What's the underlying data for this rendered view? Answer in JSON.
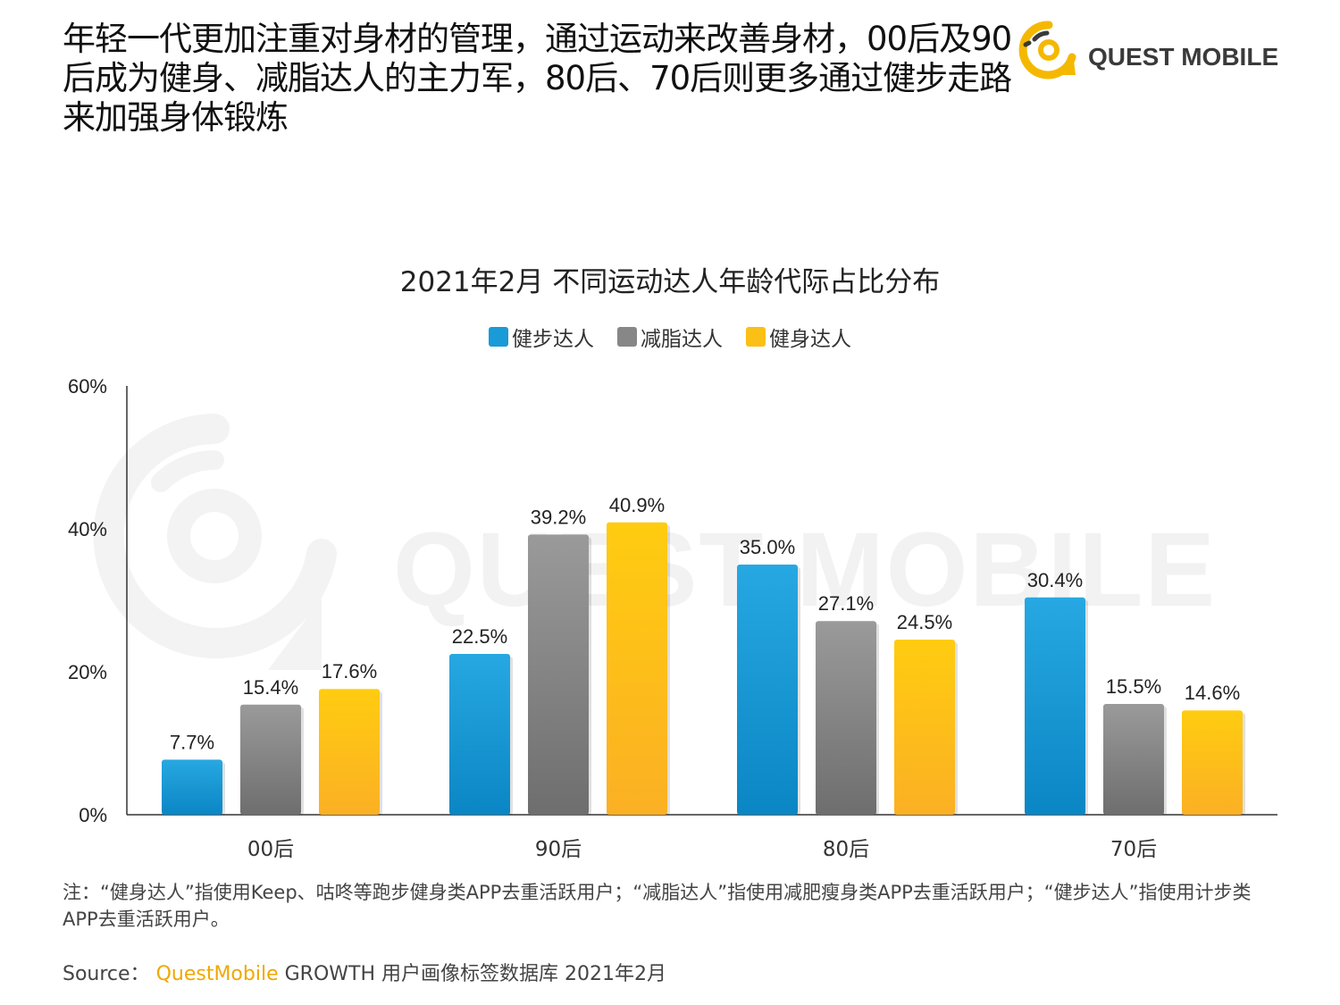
{
  "headline": "年轻一代更加注重对身材的管理，通过运动来改善身材，00后及90后成为健身、减脂达人的主力军，80后、70后则更多通过健步走路来加强身体锻炼",
  "logo": {
    "text": "QUEST MOBILE",
    "icon": "quest-mobile-logo-icon"
  },
  "watermark": {
    "text": "QUEST MOBILE"
  },
  "chart_data": {
    "type": "bar",
    "title": "2021年2月 不同运动达人年龄代际占比分布",
    "categories": [
      "00后",
      "90后",
      "80后",
      "70后"
    ],
    "series": [
      {
        "name": "健步达人",
        "values": [
          7.7,
          22.5,
          35.0,
          30.4
        ],
        "labels": [
          "7.7%",
          "22.5%",
          "35.0%",
          "30.4%"
        ],
        "color": "#1a9ad6"
      },
      {
        "name": "减脂达人",
        "values": [
          15.4,
          39.2,
          27.1,
          15.5
        ],
        "labels": [
          "15.4%",
          "39.2%",
          "27.1%",
          "15.5%"
        ],
        "color": "#878787"
      },
      {
        "name": "健身达人",
        "values": [
          17.6,
          40.9,
          24.5,
          14.6
        ],
        "labels": [
          "17.6%",
          "40.9%",
          "24.5%",
          "14.6%"
        ],
        "color": "#fcbf16"
      }
    ],
    "ylim": [
      0,
      60
    ],
    "yticks": [
      0,
      20,
      40,
      60
    ],
    "ytick_labels": [
      "0%",
      "20%",
      "40%",
      "60%"
    ],
    "xlabel": "",
    "ylabel": "",
    "legend_position": "top-center",
    "grid": false
  },
  "footnote": "注：“健身达人”指使用Keep、咕咚等跑步健身类APP去重活跃用户；“减脂达人”指使用减肥瘦身类APP去重活跃用户；“健步达人”指使用计步类APP去重活跃用户。",
  "source": {
    "label": "Source：",
    "brand": "QuestMobile",
    "text": "GROWTH 用户画像标签数据库 2021年2月"
  }
}
